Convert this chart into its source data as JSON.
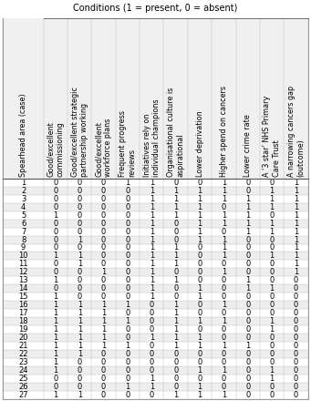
{
  "title": "Conditions (1 = present, 0 = absent)",
  "col_headers": [
    "Spearhead area (case)",
    "Good/excellent\ncommissioning",
    "Good/excellent strategic\npartnership working",
    "Good/excellent\nworkforce plans",
    "Frequent progress\nreviews",
    "Initiatives rely on\nindividual champions",
    "Organisational culture is\naspirational",
    "Lower deprivation",
    "Higher spend on cancers",
    "Lower crime rate",
    "A ‘3 star’ NHS Primary\nCare Trust",
    "A narrowing cancers gap\n(outcome)"
  ],
  "rows": [
    [
      1,
      0,
      0,
      0,
      1,
      1,
      0,
      0,
      1,
      0,
      0,
      1
    ],
    [
      2,
      0,
      0,
      0,
      0,
      1,
      1,
      1,
      1,
      0,
      1,
      1
    ],
    [
      3,
      0,
      0,
      0,
      0,
      1,
      1,
      1,
      1,
      1,
      1,
      1
    ],
    [
      4,
      0,
      0,
      0,
      0,
      1,
      1,
      1,
      0,
      1,
      1,
      1
    ],
    [
      5,
      1,
      0,
      0,
      0,
      1,
      1,
      1,
      1,
      1,
      0,
      1
    ],
    [
      6,
      0,
      0,
      0,
      0,
      1,
      0,
      1,
      1,
      1,
      1,
      1
    ],
    [
      7,
      0,
      0,
      0,
      0,
      1,
      0,
      1,
      0,
      1,
      1,
      1
    ],
    [
      8,
      0,
      1,
      0,
      0,
      1,
      0,
      1,
      1,
      0,
      0,
      1
    ],
    [
      9,
      0,
      0,
      0,
      0,
      1,
      1,
      0,
      1,
      0,
      0,
      1
    ],
    [
      10,
      1,
      1,
      0,
      0,
      1,
      1,
      0,
      1,
      0,
      1,
      1
    ],
    [
      11,
      0,
      1,
      0,
      0,
      1,
      1,
      0,
      0,
      0,
      0,
      1
    ],
    [
      12,
      0,
      0,
      1,
      0,
      1,
      0,
      0,
      1,
      0,
      0,
      1
    ],
    [
      13,
      1,
      0,
      0,
      0,
      1,
      1,
      0,
      0,
      1,
      0,
      0
    ],
    [
      14,
      0,
      0,
      0,
      0,
      1,
      0,
      1,
      0,
      1,
      1,
      0
    ],
    [
      15,
      1,
      0,
      0,
      0,
      1,
      0,
      1,
      0,
      0,
      0,
      0
    ],
    [
      16,
      1,
      1,
      1,
      1,
      0,
      1,
      0,
      1,
      0,
      0,
      0
    ],
    [
      17,
      1,
      1,
      1,
      0,
      0,
      1,
      0,
      0,
      0,
      0,
      0
    ],
    [
      18,
      1,
      1,
      1,
      1,
      0,
      1,
      1,
      1,
      0,
      1,
      0
    ],
    [
      19,
      1,
      1,
      1,
      0,
      0,
      1,
      0,
      0,
      0,
      1,
      0
    ],
    [
      20,
      1,
      1,
      1,
      0,
      1,
      1,
      1,
      0,
      0,
      0,
      0
    ],
    [
      21,
      1,
      1,
      1,
      1,
      0,
      1,
      1,
      1,
      1,
      0,
      0
    ],
    [
      22,
      1,
      1,
      0,
      0,
      0,
      0,
      0,
      0,
      0,
      0,
      0
    ],
    [
      23,
      1,
      0,
      0,
      0,
      0,
      0,
      0,
      0,
      0,
      0,
      0
    ],
    [
      24,
      1,
      0,
      0,
      0,
      0,
      0,
      1,
      1,
      0,
      1,
      0
    ],
    [
      25,
      0,
      0,
      0,
      0,
      1,
      0,
      0,
      0,
      0,
      1,
      0
    ],
    [
      26,
      0,
      0,
      0,
      1,
      1,
      0,
      1,
      0,
      0,
      0,
      0
    ],
    [
      27,
      1,
      1,
      0,
      0,
      0,
      1,
      1,
      1,
      0,
      0,
      0
    ]
  ],
  "font_size": 6.0,
  "header_font_size": 5.8,
  "title_font_size": 7.0,
  "bg_white": "#ffffff",
  "bg_gray": "#eeeeee",
  "line_color": "#bbbbbb",
  "thick_line_color": "#555555"
}
